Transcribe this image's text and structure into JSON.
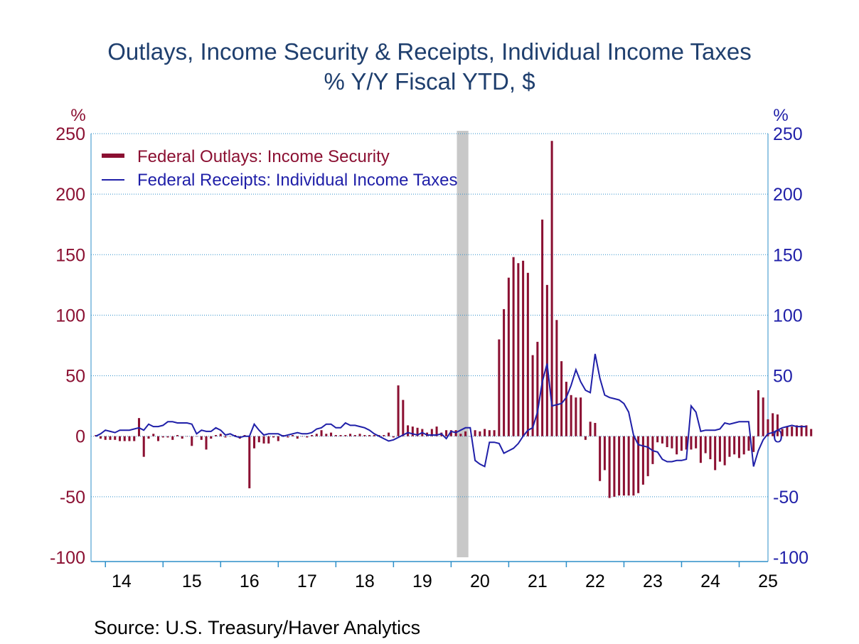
{
  "chart_data": {
    "type": "bar+line",
    "title": "Outlays, Income Security & Receipts, Individual Income Taxes",
    "subtitle": "% Y/Y   Fiscal YTD, $",
    "source": "Source:  U.S. Treasury/Haver Analytics",
    "left_axis": {
      "unit": "%",
      "ylim": [
        -100,
        250
      ],
      "ticks": [
        250,
        200,
        150,
        100,
        50,
        0,
        -50,
        -100
      ]
    },
    "right_axis": {
      "unit": "%",
      "ylim": [
        -100,
        250
      ],
      "ticks": [
        250,
        200,
        150,
        100,
        50,
        0,
        -50,
        -100
      ]
    },
    "x_axis": {
      "start": 2013.75,
      "end": 2025.5,
      "tick_labels": [
        "14",
        "15",
        "16",
        "17",
        "18",
        "19",
        "20",
        "21",
        "22",
        "23",
        "24",
        "25"
      ],
      "year_starts": [
        2014,
        2015,
        2016,
        2017,
        2018,
        2019,
        2020,
        2021,
        2022,
        2023,
        2024,
        2025
      ]
    },
    "grid": "horizontal dotted",
    "legend": {
      "position": "top-left"
    },
    "recession_band": [
      2020.1,
      2020.3
    ],
    "colors": {
      "bars": "#8b1032",
      "line": "#1f1fa8",
      "left_axis_text": "#8b1032",
      "right_axis_text": "#1f1fa8",
      "axis": "#2d8fc9",
      "title": "#1f3f6e",
      "recession": "#c8c8c8"
    },
    "series": [
      {
        "name": "Federal Outlays: Income Security",
        "kind": "bar",
        "start": 2013.833,
        "step": 0.08333,
        "values": [
          1,
          -2,
          -3,
          -3,
          -3,
          -4,
          -4,
          -4,
          -4,
          15,
          -17,
          -2,
          2,
          -4,
          -1,
          -1,
          -3,
          1,
          -2,
          0,
          -8,
          0,
          -3,
          -11,
          -2,
          1,
          2,
          -1,
          0,
          1,
          -2,
          1,
          -43,
          -10,
          -5,
          -6,
          -6,
          -1,
          -4,
          1,
          -1,
          1,
          -2,
          0,
          -1,
          1,
          2,
          5,
          2,
          3,
          1,
          1,
          1,
          2,
          1,
          2,
          1,
          1,
          1,
          1,
          1,
          3,
          -1,
          42,
          30,
          9,
          8,
          7,
          6,
          3,
          6,
          8,
          3,
          5,
          5,
          5,
          2,
          4,
          0,
          5,
          4,
          6,
          5,
          5,
          80,
          105,
          131,
          148,
          143,
          145,
          135,
          67,
          78,
          179,
          125,
          244,
          96,
          62,
          45,
          34,
          32,
          32,
          -3,
          12,
          11,
          -37,
          -28,
          -51,
          -50,
          -49,
          -49,
          -49,
          -49,
          -47,
          -40,
          -33,
          -23,
          -5,
          -6,
          -9,
          -10,
          -15,
          -12,
          -11,
          -11,
          -10,
          -22,
          -14,
          -19,
          -28,
          -21,
          -24,
          -17,
          -15,
          -18,
          -15,
          -12,
          -13,
          38,
          32,
          14,
          19,
          18,
          6,
          8,
          8,
          9,
          9,
          9,
          6
        ],
        "labels": {}
      },
      {
        "name": "Federal Receipts: Individual Income Taxes",
        "kind": "line",
        "start": 2013.833,
        "step": 0.08333,
        "values": [
          0,
          2,
          5,
          4,
          3,
          5,
          5,
          5,
          6,
          7,
          5,
          10,
          8,
          8,
          9,
          12,
          12,
          11,
          11,
          11,
          10,
          2,
          5,
          4,
          4,
          7,
          5,
          1,
          2,
          0,
          -1,
          0,
          0,
          10,
          5,
          1,
          2,
          2,
          2,
          0,
          1,
          2,
          3,
          2,
          2,
          3,
          6,
          7,
          10,
          10,
          7,
          7,
          11,
          9,
          9,
          8,
          7,
          5,
          2,
          0,
          -2,
          -4,
          -3,
          -1,
          1,
          3,
          2,
          1,
          3,
          1,
          1,
          1,
          2,
          -2,
          4,
          3,
          5,
          7,
          7,
          -20,
          -23,
          -25,
          -5,
          -5,
          -6,
          -14,
          -12,
          -10,
          -6,
          0,
          5,
          7,
          20,
          45,
          60,
          25,
          26,
          27,
          32,
          42,
          55,
          45,
          38,
          36,
          68,
          48,
          34,
          32,
          31,
          30,
          27,
          20,
          1,
          -7,
          -8,
          -9,
          -12,
          -13,
          -19,
          -21,
          -21,
          -20,
          -20,
          -19,
          25,
          20,
          4,
          5,
          5,
          5,
          6,
          11,
          10,
          11,
          12,
          12,
          12,
          -25,
          -12,
          -3,
          2,
          3,
          5,
          7,
          8,
          9,
          8,
          8,
          8
        ]
      }
    ]
  }
}
